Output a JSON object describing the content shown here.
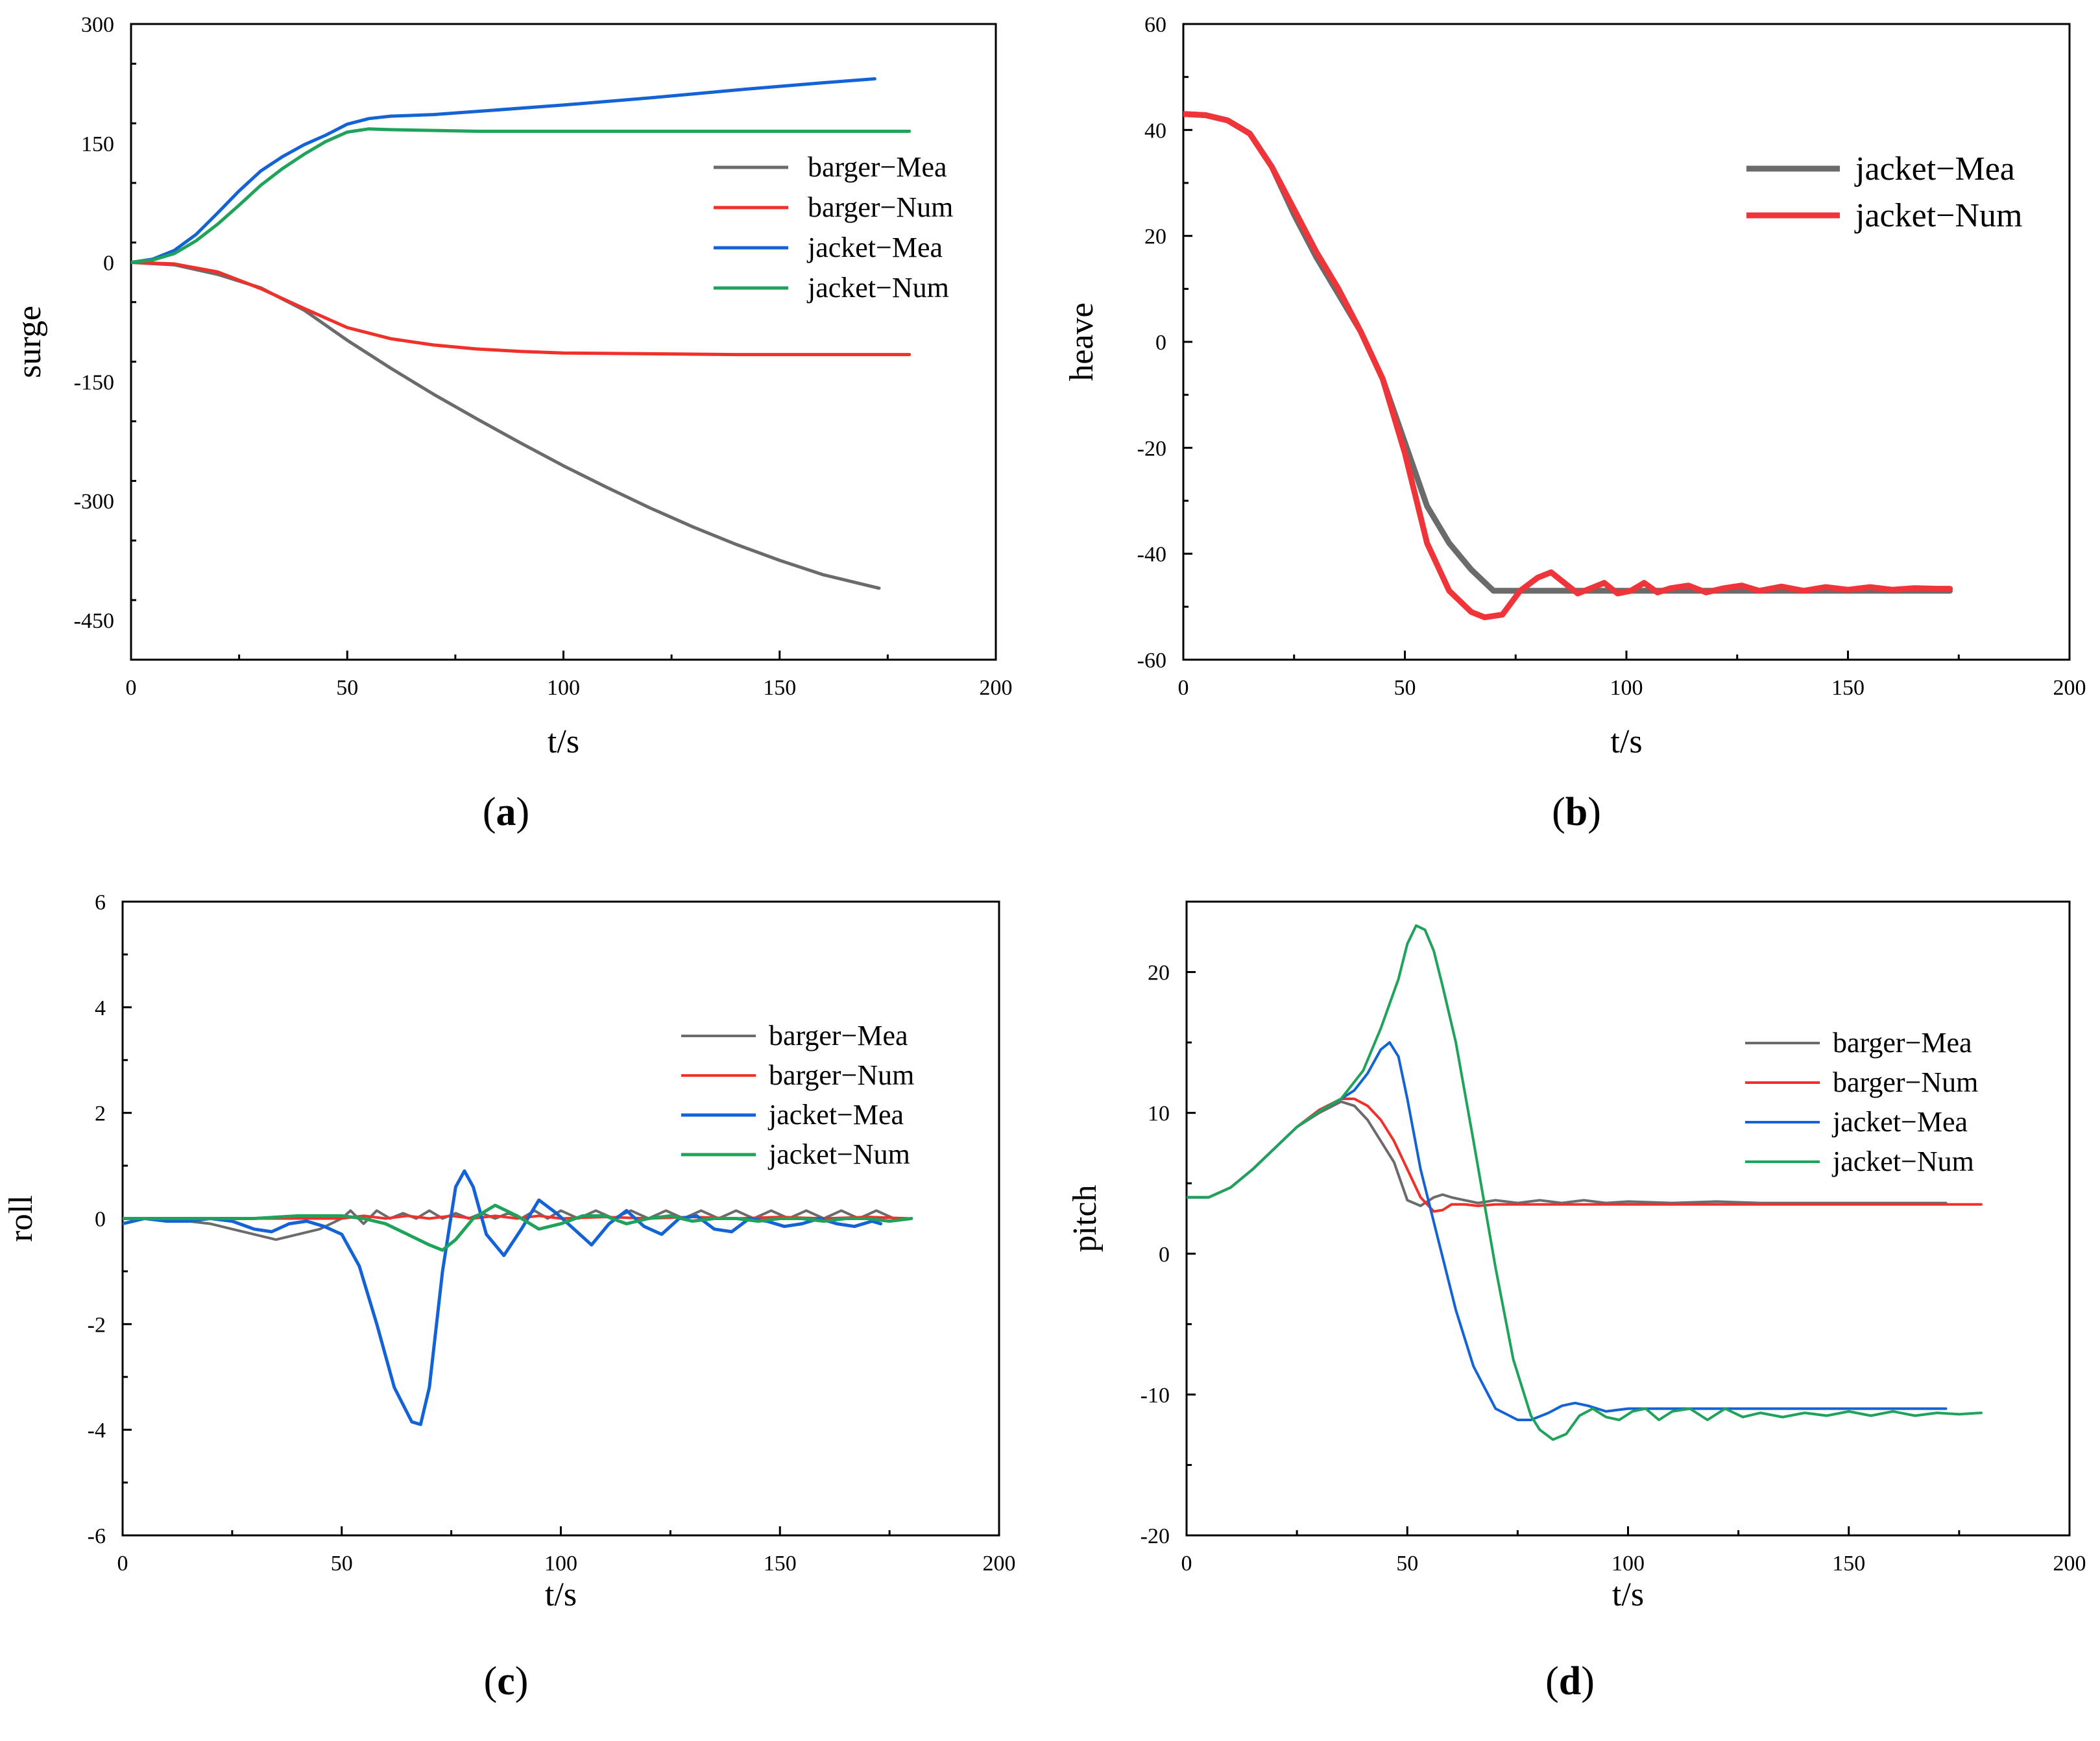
{
  "chart_data": [
    {
      "id": "a",
      "type": "line",
      "caption_letter": "a",
      "xlabel": "t/s",
      "ylabel": "surge",
      "xlim": [
        0,
        200
      ],
      "ylim": [
        -500,
        300
      ],
      "xticks": [
        0,
        50,
        100,
        150,
        200
      ],
      "yticks": [
        300,
        150,
        0,
        -150,
        -300,
        -450
      ],
      "legend_position": "right-middle",
      "series": [
        {
          "name": "barger−Mea",
          "color": "#6b6b6b",
          "width": 5,
          "x": [
            0,
            10,
            20,
            30,
            40,
            50,
            60,
            70,
            80,
            90,
            100,
            110,
            120,
            130,
            140,
            150,
            160,
            173
          ],
          "y": [
            0,
            -3,
            -15,
            -32,
            -60,
            -98,
            -133,
            -166,
            -197,
            -227,
            -256,
            -283,
            -309,
            -333,
            -355,
            -375,
            -393,
            -410
          ]
        },
        {
          "name": "barger−Num",
          "color": "#f0302a",
          "width": 5,
          "x": [
            0,
            10,
            20,
            30,
            40,
            50,
            60,
            70,
            80,
            90,
            100,
            120,
            140,
            160,
            180
          ],
          "y": [
            0,
            -2,
            -12,
            -33,
            -58,
            -82,
            -96,
            -104,
            -109,
            -112,
            -114,
            -115,
            -116,
            -116,
            -116
          ]
        },
        {
          "name": "jacket−Mea",
          "color": "#1463d6",
          "width": 5,
          "x": [
            0,
            5,
            10,
            15,
            20,
            25,
            30,
            35,
            40,
            45,
            50,
            55,
            60,
            70,
            80,
            100,
            120,
            140,
            160,
            172
          ],
          "y": [
            0,
            4,
            15,
            35,
            62,
            90,
            115,
            133,
            148,
            160,
            174,
            181,
            184,
            186,
            190,
            198,
            207,
            217,
            226,
            231
          ]
        },
        {
          "name": "jacket−Num",
          "color": "#1fa35a",
          "width": 5,
          "x": [
            0,
            5,
            10,
            15,
            20,
            25,
            30,
            35,
            40,
            45,
            50,
            55,
            60,
            70,
            80,
            100,
            120,
            140,
            160,
            180
          ],
          "y": [
            0,
            3,
            11,
            27,
            48,
            72,
            97,
            118,
            136,
            152,
            164,
            168,
            167,
            166,
            165,
            165,
            165,
            165,
            165,
            165
          ]
        }
      ]
    },
    {
      "id": "b",
      "type": "line",
      "caption_letter": "b",
      "xlabel": "t/s",
      "ylabel": "heave",
      "xlim": [
        0,
        200
      ],
      "ylim": [
        -60,
        60
      ],
      "xticks": [
        0,
        50,
        100,
        150,
        200
      ],
      "yticks": [
        60,
        40,
        20,
        0,
        -20,
        -40,
        -60
      ],
      "legend_position": "top-right",
      "series": [
        {
          "name": "jacket−Mea",
          "color": "#6b6b6b",
          "width": 9,
          "x": [
            0,
            5,
            10,
            15,
            20,
            25,
            30,
            35,
            40,
            45,
            50,
            55,
            60,
            65,
            70,
            75,
            80,
            90,
            100,
            110,
            120,
            130,
            140,
            150,
            160,
            173
          ],
          "y": [
            43,
            42.8,
            41.8,
            39.3,
            33,
            24,
            16,
            9,
            2,
            -7,
            -19,
            -31,
            -38,
            -43,
            -47,
            -47,
            -47,
            -47,
            -47,
            -47,
            -47,
            -47,
            -47,
            -47,
            -47,
            -47
          ]
        },
        {
          "name": "jacket−Num",
          "color": "#f0353a",
          "width": 9,
          "x": [
            0,
            5,
            10,
            15,
            20,
            25,
            30,
            35,
            40,
            45,
            50,
            55,
            60,
            65,
            68,
            72,
            76,
            80,
            83,
            86,
            89,
            92,
            95,
            98,
            101,
            104,
            107,
            110,
            114,
            118,
            122,
            126,
            130,
            135,
            140,
            145,
            150,
            155,
            160,
            165,
            170,
            173
          ],
          "y": [
            43,
            42.8,
            41.8,
            39.3,
            33,
            25,
            17,
            10,
            2,
            -7,
            -21,
            -38,
            -47,
            -51,
            -52,
            -51.5,
            -47,
            -44.5,
            -43.5,
            -45.5,
            -47.5,
            -46.5,
            -45.5,
            -47.5,
            -47,
            -45.5,
            -47.3,
            -46.5,
            -46,
            -47.3,
            -46.5,
            -46,
            -47,
            -46.2,
            -47,
            -46.3,
            -46.8,
            -46.3,
            -46.8,
            -46.5,
            -46.6,
            -46.6
          ]
        }
      ]
    },
    {
      "id": "c",
      "type": "line",
      "caption_letter": "c",
      "xlabel": "t/s",
      "ylabel": "roll",
      "xlim": [
        0,
        200
      ],
      "ylim": [
        -6,
        6
      ],
      "xticks": [
        0,
        50,
        100,
        150,
        200
      ],
      "yticks": [
        6,
        4,
        2,
        0,
        -2,
        -4,
        -6
      ],
      "legend_position": "right-middle",
      "series": [
        {
          "name": "barger−Mea",
          "color": "#6b6b6b",
          "width": 4,
          "x": [
            0,
            5,
            10,
            15,
            20,
            25,
            30,
            35,
            40,
            45,
            50,
            52,
            55,
            58,
            61,
            64,
            67,
            70,
            73,
            76,
            79,
            82,
            85,
            88,
            91,
            94,
            97,
            100,
            104,
            108,
            112,
            116,
            120,
            124,
            128,
            132,
            136,
            140,
            144,
            148,
            152,
            156,
            160,
            164,
            168,
            172,
            176,
            180
          ],
          "y": [
            0,
            0,
            -0.05,
            -0.05,
            -0.1,
            -0.2,
            -0.3,
            -0.4,
            -0.3,
            -0.2,
            0,
            0.15,
            -0.1,
            0.15,
            0,
            0.1,
            0,
            0.15,
            0,
            0.1,
            0,
            0.1,
            0,
            0.1,
            0,
            0.15,
            0,
            0.15,
            0,
            0.15,
            0,
            0.15,
            0,
            0.15,
            0,
            0.15,
            0,
            0.15,
            0,
            0.15,
            0,
            0.15,
            0,
            0.15,
            0,
            0.15,
            0,
            0
          ]
        },
        {
          "name": "barger−Num",
          "color": "#f0302a",
          "width": 4,
          "x": [
            0,
            10,
            20,
            30,
            40,
            50,
            55,
            60,
            65,
            70,
            75,
            80,
            85,
            90,
            95,
            100,
            110,
            120,
            130,
            140,
            150,
            160,
            170,
            180
          ],
          "y": [
            0,
            0,
            0,
            0,
            0,
            0,
            0.05,
            0,
            0.05,
            0,
            0.05,
            0,
            0.05,
            0,
            0.05,
            0,
            0.03,
            0,
            0.03,
            0,
            0.03,
            0,
            0.03,
            0
          ]
        },
        {
          "name": "jacket−Mea",
          "color": "#1463d6",
          "width": 5,
          "x": [
            0,
            5,
            10,
            15,
            20,
            25,
            30,
            34,
            38,
            42,
            46,
            50,
            54,
            58,
            62,
            66,
            68,
            70,
            73,
            76,
            78,
            80,
            83,
            87,
            91,
            95,
            99,
            103,
            107,
            111,
            115,
            119,
            123,
            127,
            131,
            135,
            139,
            143,
            147,
            151,
            155,
            159,
            163,
            167,
            171,
            173
          ],
          "y": [
            -0.1,
            0,
            -0.05,
            -0.05,
            0,
            -0.05,
            -0.2,
            -0.25,
            -0.1,
            -0.05,
            -0.15,
            -0.3,
            -0.9,
            -2.0,
            -3.2,
            -3.85,
            -3.9,
            -3.2,
            -1.0,
            0.6,
            0.9,
            0.6,
            -0.3,
            -0.7,
            -0.2,
            0.35,
            0.1,
            -0.2,
            -0.5,
            -0.1,
            0.15,
            -0.15,
            -0.3,
            0,
            0.05,
            -0.2,
            -0.25,
            0,
            -0.05,
            -0.15,
            -0.1,
            0,
            -0.1,
            -0.15,
            -0.05,
            -0.1
          ]
        },
        {
          "name": "jacket−Num",
          "color": "#1fa35a",
          "width": 5,
          "x": [
            0,
            10,
            20,
            30,
            40,
            50,
            55,
            60,
            65,
            70,
            73,
            76,
            80,
            85,
            90,
            95,
            100,
            105,
            110,
            115,
            120,
            125,
            130,
            135,
            140,
            145,
            150,
            155,
            160,
            165,
            170,
            175,
            180
          ],
          "y": [
            0,
            0,
            0,
            0,
            0.05,
            0.05,
            0,
            -0.1,
            -0.3,
            -0.5,
            -0.6,
            -0.4,
            0,
            0.25,
            0.05,
            -0.2,
            -0.1,
            0.05,
            0.05,
            -0.1,
            0,
            0.05,
            -0.05,
            0,
            0,
            -0.05,
            0,
            0,
            -0.05,
            0,
            0,
            -0.05,
            0
          ]
        }
      ]
    },
    {
      "id": "d",
      "type": "line",
      "caption_letter": "d",
      "xlabel": "t/s",
      "ylabel": "pitch",
      "xlim": [
        0,
        200
      ],
      "ylim": [
        -20,
        25
      ],
      "xticks": [
        0,
        50,
        100,
        150,
        200
      ],
      "yticks": [
        20,
        10,
        0,
        -10,
        -20
      ],
      "legend_position": "right-middle",
      "series": [
        {
          "name": "barger−Mea",
          "color": "#6b6b6b",
          "width": 4,
          "x": [
            0,
            5,
            10,
            15,
            20,
            25,
            30,
            35,
            38,
            41,
            44,
            47,
            50,
            53,
            56,
            58,
            60,
            63,
            66,
            70,
            75,
            80,
            85,
            90,
            95,
            100,
            110,
            120,
            130,
            140,
            150,
            160,
            172
          ],
          "y": [
            4,
            4,
            4.7,
            6,
            7.5,
            9,
            10,
            10.8,
            10.5,
            9.5,
            8,
            6.5,
            3.8,
            3.4,
            4,
            4.2,
            4.0,
            3.8,
            3.6,
            3.8,
            3.6,
            3.8,
            3.6,
            3.8,
            3.6,
            3.7,
            3.6,
            3.7,
            3.6,
            3.6,
            3.6,
            3.6,
            3.6
          ]
        },
        {
          "name": "barger−Num",
          "color": "#f0302a",
          "width": 4,
          "x": [
            0,
            5,
            10,
            15,
            20,
            25,
            30,
            35,
            38,
            41,
            44,
            47,
            50,
            53,
            56,
            58,
            60,
            63,
            66,
            70,
            80,
            100,
            120,
            140,
            160,
            180
          ],
          "y": [
            4,
            4,
            4.7,
            6,
            7.5,
            9,
            10.2,
            11,
            11,
            10.5,
            9.5,
            8,
            6,
            4,
            3,
            3.1,
            3.5,
            3.5,
            3.4,
            3.5,
            3.5,
            3.5,
            3.5,
            3.5,
            3.5,
            3.5
          ]
        },
        {
          "name": "jacket−Mea",
          "color": "#1463d6",
          "width": 4,
          "x": [
            0,
            5,
            10,
            15,
            20,
            25,
            30,
            35,
            38,
            41,
            44,
            46,
            48,
            50,
            53,
            57,
            61,
            65,
            70,
            75,
            78,
            82,
            85,
            88,
            91,
            95,
            100,
            110,
            120,
            130,
            140,
            150,
            160,
            172
          ],
          "y": [
            4,
            4,
            4.7,
            6,
            7.5,
            9,
            10.1,
            11,
            11.6,
            12.8,
            14.5,
            15,
            14,
            11,
            6,
            1,
            -4,
            -8,
            -11,
            -11.8,
            -11.8,
            -11.3,
            -10.8,
            -10.6,
            -10.8,
            -11.2,
            -11.0,
            -11.0,
            -11.0,
            -11.0,
            -11.0,
            -11.0,
            -11.0,
            -11.0
          ]
        },
        {
          "name": "jacket−Num",
          "color": "#1fa35a",
          "width": 4,
          "x": [
            0,
            5,
            10,
            15,
            20,
            25,
            30,
            35,
            40,
            44,
            48,
            50,
            52,
            54,
            56,
            58,
            61,
            65,
            70,
            74,
            78,
            80,
            83,
            86,
            89,
            92,
            95,
            98,
            101,
            104,
            107,
            110,
            114,
            118,
            122,
            126,
            130,
            135,
            140,
            145,
            150,
            155,
            160,
            165,
            170,
            175,
            180
          ],
          "y": [
            4,
            4,
            4.7,
            6,
            7.5,
            9,
            10.1,
            11,
            13,
            16,
            19.5,
            22,
            23.3,
            23,
            21.5,
            19,
            15,
            8,
            -1,
            -7.5,
            -11.5,
            -12.5,
            -13.2,
            -12.8,
            -11.5,
            -11.0,
            -11.6,
            -11.8,
            -11.2,
            -11.0,
            -11.8,
            -11.2,
            -11.0,
            -11.8,
            -11.0,
            -11.6,
            -11.3,
            -11.6,
            -11.3,
            -11.5,
            -11.2,
            -11.5,
            -11.2,
            -11.5,
            -11.3,
            -11.4,
            -11.3
          ]
        }
      ]
    }
  ]
}
